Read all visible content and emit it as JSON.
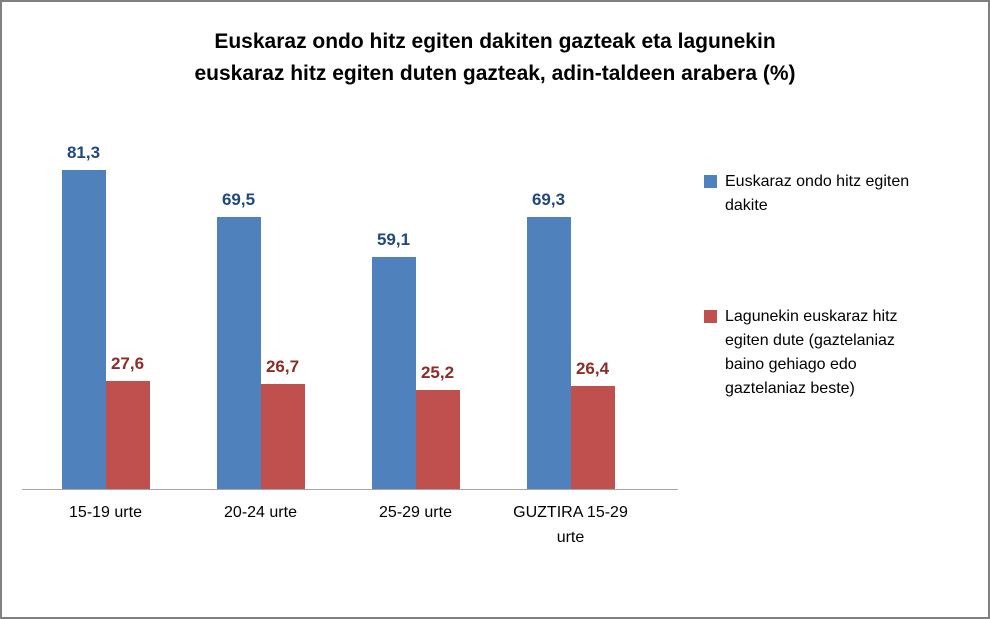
{
  "frame": {
    "border_color": "#808080",
    "background": "#ffffff"
  },
  "title": {
    "line1": "Euskaraz ondo hitz egiten dakiten gazteak eta lagunekin",
    "line2": "euskaraz hitz egiten duten gazteak, adin-taldeen arabera (%)"
  },
  "chart_data": {
    "type": "bar",
    "title": "Euskaraz ondo hitz egiten dakiten gazteak eta lagunekin euskaraz hitz egiten duten gazteak, adin-taldeen arabera (%)",
    "categories": [
      "15-19 urte",
      "20-24 urte",
      "25-29 urte",
      "GUZTIRA 15-29 urte"
    ],
    "series": [
      {
        "name": "Euskaraz ondo hitz egiten dakite",
        "values": [
          81.3,
          69.5,
          59.1,
          69.3
        ],
        "value_labels": [
          "81,3",
          "69,5",
          "59,1",
          "69,3"
        ],
        "bar_color": "#4f81bd",
        "label_color": "#1f497d"
      },
      {
        "name": "Lagunekin euskaraz hitz egiten dute (gaztelaniaz baino gehiago edo gaztelaniaz beste)",
        "values": [
          27.6,
          26.7,
          25.2,
          26.4
        ],
        "value_labels": [
          "27,6",
          "26,7",
          "25,2",
          "26,4"
        ],
        "bar_color": "#c0504d",
        "label_color": "#8c2d28"
      }
    ],
    "ylim": [
      0,
      100
    ],
    "grid": false,
    "y_axis_visible": false,
    "x_axis_line_color": "#a6a6a6",
    "legend_position": "right",
    "decimal_separator": ","
  }
}
